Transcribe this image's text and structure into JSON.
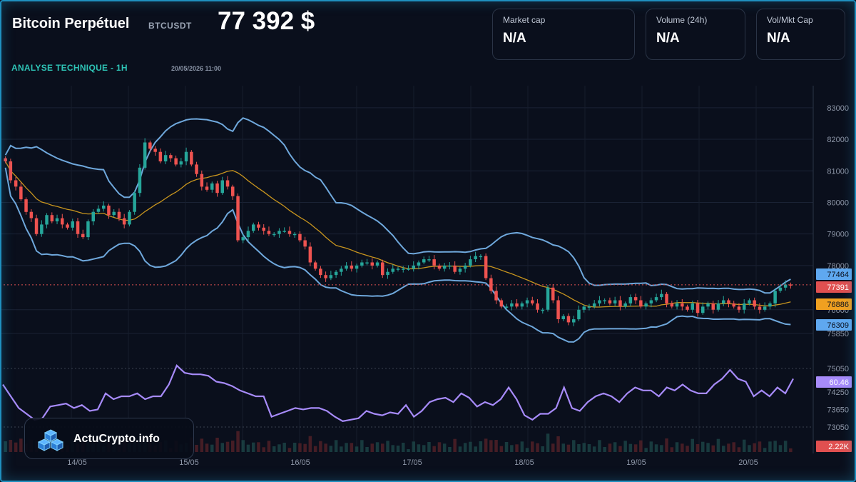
{
  "header": {
    "title": "Bitcoin Perpétuel",
    "symbol": "BTCUSDT",
    "price": "77 392 $",
    "analysis": "ANALYSE TECHNIQUE - 1H",
    "datetime": "20/05/2026 11:00"
  },
  "stats": [
    {
      "label": "Market cap",
      "value": "N/A"
    },
    {
      "label": "Volume (24h)",
      "value": "N/A"
    },
    {
      "label": "Vol/Mkt Cap",
      "value": "N/A"
    }
  ],
  "brand": {
    "name": "ActuCrypto.info"
  },
  "colors": {
    "up": "#26a69a",
    "down": "#ef5350",
    "bollinger": "#6fa8dc",
    "ma": "#c8951e",
    "rsi": "#a78bfa",
    "price_line": "#e05050"
  },
  "chart_data": {
    "type": "candlestick",
    "x_tick_labels": [
      "14/05",
      "15/05",
      "16/05",
      "17/05",
      "18/05",
      "19/05",
      "20/05"
    ],
    "price_axis": {
      "ticks": [
        83000,
        82000,
        81000,
        80000,
        79000,
        78000,
        76600,
        75850
      ],
      "range": [
        75600,
        83200
      ]
    },
    "rsi_axis": {
      "ticks": [
        75050,
        74250,
        73650,
        73050
      ]
    },
    "badges": {
      "bollinger_upper": "77464",
      "last_price": "77391",
      "moving_average": "76886",
      "bollinger_lower": "76309",
      "rsi": "60.46",
      "volume": "2.22K"
    },
    "closes": [
      81300,
      80700,
      80500,
      80100,
      79700,
      79500,
      79000,
      79300,
      79600,
      79400,
      79500,
      79300,
      79200,
      79400,
      79000,
      78900,
      79400,
      79700,
      79800,
      79900,
      79600,
      79700,
      79500,
      79300,
      79700,
      80300,
      81100,
      81900,
      81700,
      81600,
      81300,
      81500,
      81400,
      81200,
      81300,
      81600,
      81200,
      80900,
      80500,
      80400,
      80600,
      80300,
      80700,
      80500,
      80200,
      78800,
      78900,
      79100,
      79300,
      79200,
      79100,
      79000,
      79000,
      79100,
      79100,
      79000,
      79000,
      78800,
      78600,
      78100,
      77900,
      77700,
      77600,
      77700,
      77800,
      77900,
      78000,
      77900,
      78000,
      78100,
      78100,
      78000,
      78100,
      77700,
      77800,
      77900,
      77900,
      77900,
      77900,
      78000,
      78100,
      78200,
      78200,
      78000,
      77900,
      78000,
      78000,
      77800,
      77900,
      78000,
      78200,
      78300,
      78300,
      77600,
      77200,
      76900,
      76700,
      76700,
      76800,
      76700,
      76800,
      76900,
      76800,
      76600,
      76600,
      77300,
      76900,
      76300,
      76400,
      76200,
      76300,
      76600,
      76700,
      76700,
      76800,
      76900,
      76900,
      76800,
      76900,
      76700,
      76800,
      77000,
      76900,
      76700,
      76800,
      76900,
      77000,
      77100,
      76800,
      76700,
      76800,
      76700,
      76600,
      76800,
      76500,
      76700,
      76800,
      76600,
      76800,
      76900,
      76800,
      76700,
      76600,
      76800,
      76900,
      76700,
      76600,
      76700,
      76800,
      77200,
      77300,
      77400,
      77391
    ],
    "rsi_series": [
      74500,
      74100,
      73700,
      73500,
      73300,
      73350,
      73750,
      73800,
      73850,
      73700,
      73800,
      73600,
      73650,
      74200,
      74000,
      74100,
      74100,
      74200,
      74000,
      74100,
      74100,
      74500,
      75150,
      74900,
      74850,
      74850,
      74800,
      74600,
      74550,
      74450,
      74300,
      74200,
      74100,
      74100,
      73400,
      73500,
      73600,
      73700,
      73650,
      73700,
      73700,
      73600,
      73400,
      73250,
      73300,
      73350,
      73600,
      73500,
      73450,
      73550,
      73500,
      73800,
      73400,
      73600,
      73900,
      74000,
      74050,
      73900,
      74200,
      74050,
      73750,
      73900,
      73800,
      74000,
      74400,
      74000,
      73450,
      73300,
      73500,
      73500,
      73700,
      74400,
      73700,
      73600,
      73900,
      74100,
      74200,
      74100,
      73900,
      74200,
      74400,
      74300,
      74300,
      74100,
      74400,
      74300,
      74500,
      74300,
      74200,
      74200,
      74500,
      74700,
      75000,
      74700,
      74600,
      74100,
      74300,
      74100,
      74400,
      74200,
      74700
    ]
  }
}
